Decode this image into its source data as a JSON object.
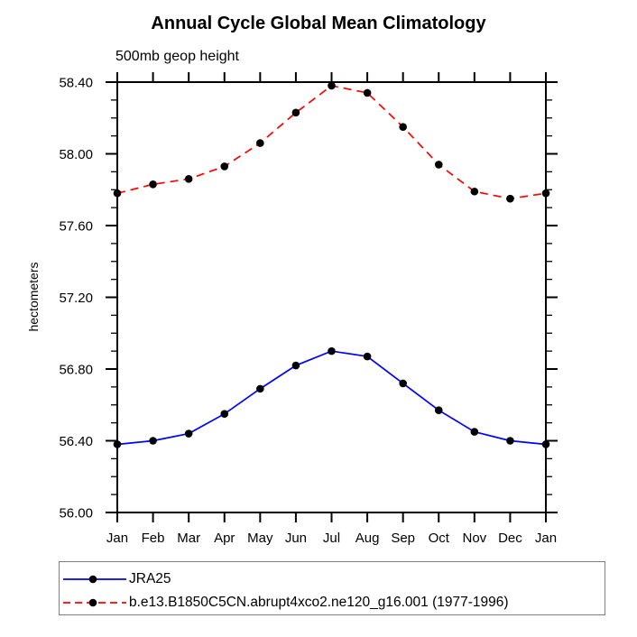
{
  "chart_data": {
    "type": "line",
    "title": "Annual Cycle Global Mean Climatology",
    "subtitle": "500mb geop height",
    "ylabel": "hectometers",
    "xlabel": "",
    "categories": [
      "Jan",
      "Feb",
      "Mar",
      "Apr",
      "May",
      "Jun",
      "Jul",
      "Aug",
      "Sep",
      "Oct",
      "Nov",
      "Dec",
      "Jan"
    ],
    "ylim": [
      56.0,
      58.4
    ],
    "y_tick_labels": [
      "56.00",
      "56.40",
      "56.80",
      "57.20",
      "57.60",
      "58.00",
      "58.40"
    ],
    "y_major_step": 0.4,
    "y_minor_step": 0.1,
    "grid": false,
    "legend_position": "bottom",
    "axis_color": "#000000",
    "marker_color": "#000000",
    "series": [
      {
        "name": "JRA25",
        "color": "#0000ff",
        "style": "solid",
        "marker": "black-dot",
        "values": [
          56.38,
          56.4,
          56.44,
          56.55,
          56.69,
          56.82,
          56.9,
          56.87,
          56.72,
          56.57,
          56.45,
          56.4,
          56.38
        ]
      },
      {
        "name": "b.e13.B1850C5CN.abrupt4xco2.ne120_g16.001 (1977-1996)",
        "color": "#ff0000",
        "style": "dashed",
        "marker": "black-dot",
        "values": [
          57.78,
          57.83,
          57.86,
          57.93,
          58.06,
          58.23,
          58.38,
          58.34,
          58.15,
          57.94,
          57.79,
          57.75,
          57.78
        ]
      }
    ]
  }
}
